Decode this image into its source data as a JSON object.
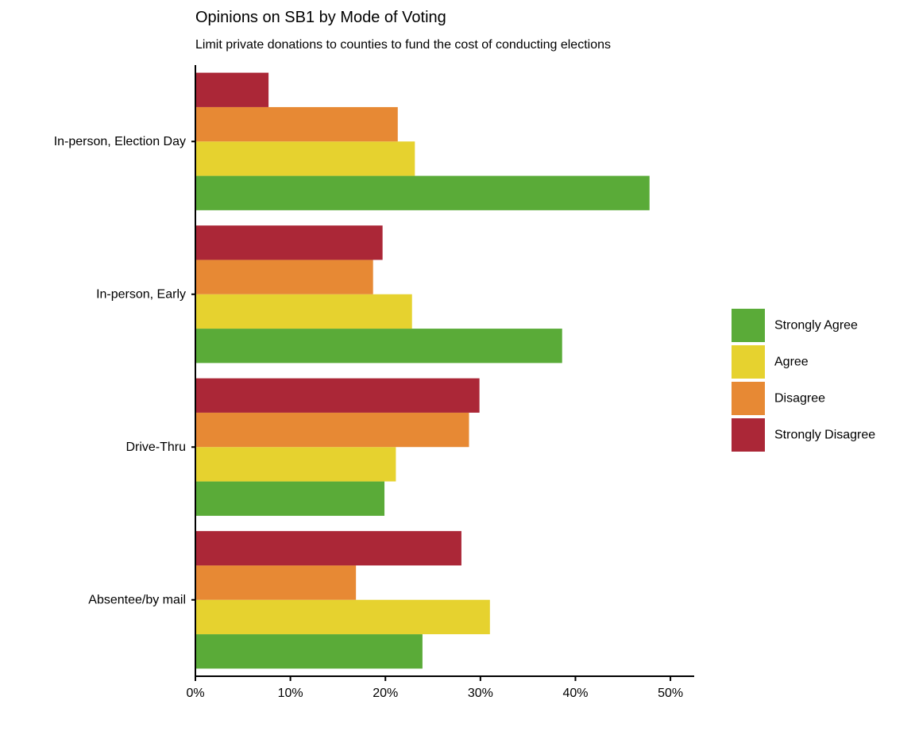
{
  "chart_data": {
    "type": "bar",
    "orientation": "horizontal",
    "title": "Opinions on SB1 by Mode of Voting",
    "subtitle": "Limit private donations to counties to fund the cost of conducting elections",
    "xlabel": "",
    "ylabel": "",
    "categories": [
      "In-person, Election Day",
      "In-person, Early",
      "Drive-Thru",
      "Absentee/by mail"
    ],
    "series": [
      {
        "name": "Strongly Agree",
        "color": "#5aab38",
        "values": [
          47.8,
          38.6,
          19.9,
          23.9
        ]
      },
      {
        "name": "Agree",
        "color": "#e6d22f",
        "values": [
          23.1,
          22.8,
          21.1,
          31.0
        ]
      },
      {
        "name": "Disagree",
        "color": "#e78934",
        "values": [
          21.3,
          18.7,
          28.8,
          16.9
        ]
      },
      {
        "name": "Strongly Disagree",
        "color": "#ab2737",
        "values": [
          7.7,
          19.7,
          29.9,
          28.0
        ]
      }
    ],
    "xlim": [
      0,
      52.5
    ],
    "xticks": [
      0,
      10,
      20,
      30,
      40,
      50
    ],
    "xtick_labels": [
      "0%",
      "10%",
      "20%",
      "30%",
      "40%",
      "50%"
    ],
    "grid": false,
    "legend_position": "right"
  }
}
